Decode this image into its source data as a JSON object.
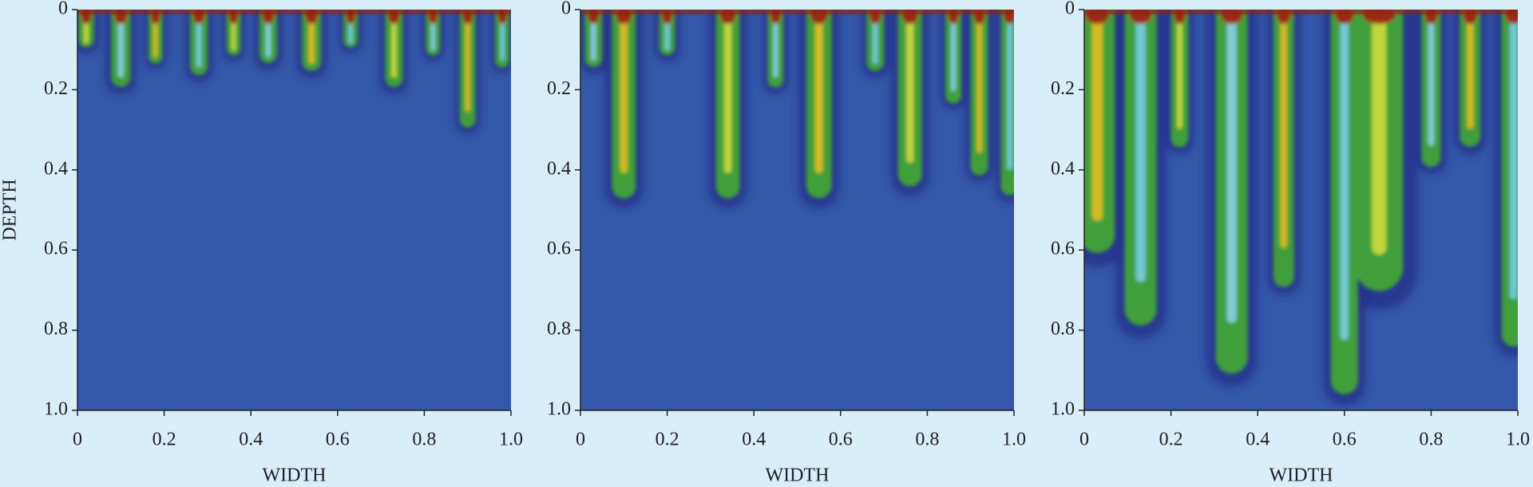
{
  "chart_data": [
    {
      "type": "image",
      "xlabel": "WIDTH",
      "ylabel": "DEPTH",
      "xlim": [
        0,
        1
      ],
      "ylim": [
        0,
        1
      ],
      "y_inverted": true,
      "xticks": [
        0,
        0.2,
        0.4,
        0.6,
        0.8,
        {
          "value": 1,
          "label": "1.0"
        }
      ],
      "yticks": [
        0,
        0.2,
        0.4,
        0.6,
        0.8,
        {
          "value": 1,
          "label": "1.0"
        }
      ]
    },
    {
      "type": "image",
      "xlabel": "WIDTH",
      "xlim": [
        0,
        1
      ],
      "ylim": [
        0,
        1
      ],
      "y_inverted": true,
      "xticks": [
        0,
        0.2,
        0.4,
        0.6,
        0.8,
        {
          "value": 1,
          "label": "1.0"
        }
      ],
      "yticks": [
        0,
        0.2,
        0.4,
        0.6,
        0.8,
        {
          "value": 1,
          "label": "1.0"
        }
      ]
    },
    {
      "type": "image",
      "xlabel": "WIDTH",
      "xlim": [
        0,
        1
      ],
      "ylim": [
        0,
        1
      ],
      "y_inverted": true,
      "xticks": [
        0,
        0.2,
        0.4,
        0.6,
        0.8,
        {
          "value": 1,
          "label": "1.0"
        }
      ],
      "yticks": [
        0,
        0.2,
        0.4,
        0.6,
        0.8,
        {
          "value": 1,
          "label": "1.0"
        }
      ]
    }
  ]
}
